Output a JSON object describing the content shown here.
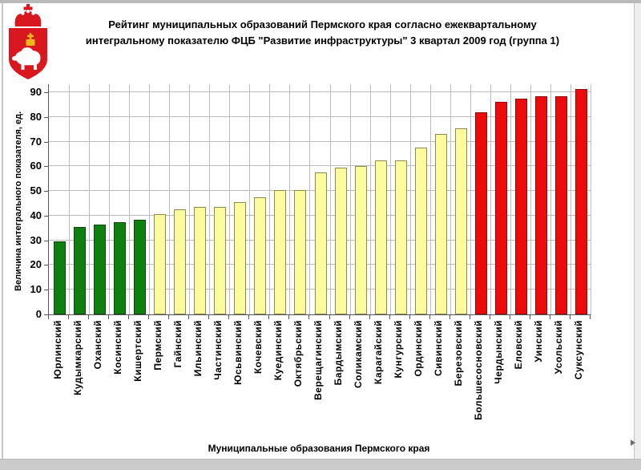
{
  "emblem": {
    "name": "perm-krai-coat-of-arms"
  },
  "title": {
    "line1": "Рейтинг муниципальных образований Пермского края согласно ежеквартальному",
    "line2": "интегральному показателю ФЦБ \"Развитие инфраструктуры\" 3 квартал 2009 год (группа 1)"
  },
  "chart_data": {
    "type": "bar",
    "title": "Рейтинг муниципальных образований Пермского края согласно ежеквартальному интегральному показателю ФЦБ \"Развитие инфраструктуры\" 3 квартал 2009 год (группа 1)",
    "xlabel": "Муниципальные образования Пермского края",
    "ylabel": "Величина интегрального показателя, ед.",
    "ylim": [
      0,
      93.3
    ],
    "ytick_step": 10,
    "ytick_max": 90,
    "grid": true,
    "legend_position": "none",
    "categories": [
      "Юрлинский",
      "Кудымкарский",
      "Оханский",
      "Косинский",
      "Кишертский",
      "Пермский",
      "Гайнский",
      "Ильинский",
      "Частинский",
      "Юсьвинский",
      "Кочевский",
      "Куединский",
      "Октябрьский",
      "Верещагинский",
      "Бардымский",
      "Соликамский",
      "Карагайский",
      "Кунгурский",
      "Ординский",
      "Сивинский",
      "Березовский",
      "Большесосновский",
      "Чердынский",
      "Еловский",
      "Уинский",
      "Усольский",
      "Суксунский"
    ],
    "values": [
      29.5,
      35.5,
      36.5,
      37.5,
      38.5,
      40.5,
      42.5,
      43.5,
      43.5,
      45.5,
      47.5,
      50.5,
      50.5,
      57.5,
      59.5,
      60,
      62.5,
      62.5,
      67.5,
      73,
      75.5,
      82,
      86,
      87.5,
      88.5,
      88.5,
      91.5
    ],
    "groups": [
      "green",
      "green",
      "green",
      "green",
      "green",
      "yellow",
      "yellow",
      "yellow",
      "yellow",
      "yellow",
      "yellow",
      "yellow",
      "yellow",
      "yellow",
      "yellow",
      "yellow",
      "yellow",
      "yellow",
      "yellow",
      "yellow",
      "yellow",
      "red",
      "red",
      "red",
      "red",
      "red",
      "red"
    ],
    "colors": {
      "green": {
        "fill": "#0f7f0f",
        "border": "#0a4a0a"
      },
      "yellow": {
        "fill": "#fbfb9e",
        "border": "#8c8c52"
      },
      "red": {
        "fill": "#ec0a0a",
        "border": "#8f0a0a"
      }
    },
    "gridline_color": "#bcbcbc"
  }
}
